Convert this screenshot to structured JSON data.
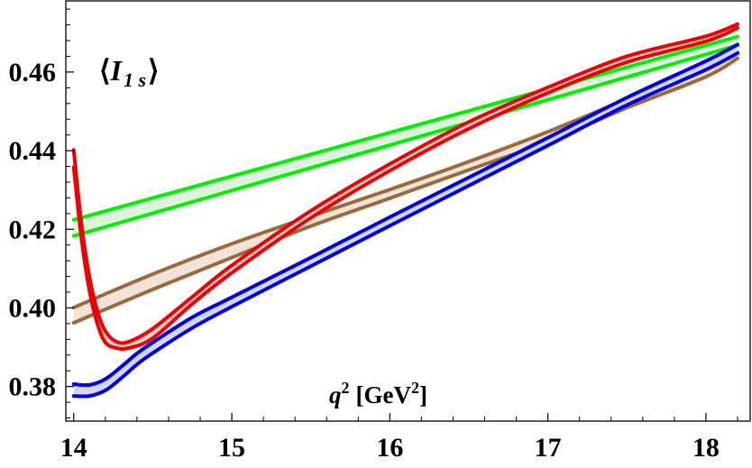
{
  "chart_data": {
    "type": "area",
    "title": "",
    "xlabel": "",
    "ylabel": "",
    "annotations": {
      "observable": {
        "bracket_open": "⟨",
        "symbol": "I",
        "subscript": "1 s",
        "bracket_close": "⟩"
      },
      "x_axis_label": {
        "symbol": "q",
        "sup1": "2",
        "unit_open": "[GeV",
        "sup2": "2",
        "unit_close": "]"
      }
    },
    "xlim": [
      13.95,
      18.28
    ],
    "ylim": [
      0.3712,
      0.4781
    ],
    "x_ticks": [
      14,
      15,
      16,
      17,
      18
    ],
    "x_tick_labels": [
      "14",
      "15",
      "16",
      "17",
      "18"
    ],
    "y_ticks": [
      0.38,
      0.4,
      0.42,
      0.44,
      0.46
    ],
    "y_tick_labels": [
      "0.38",
      "0.40",
      "0.42",
      "0.44",
      "0.46"
    ],
    "grid": false,
    "series": [
      {
        "color": "#00ee00",
        "fill": "#dcf5dc",
        "x": [
          14.0,
          18.2
        ],
        "upper": [
          0.4224,
          0.469
        ],
        "lower": [
          0.4183,
          0.4668
        ]
      },
      {
        "color": "#9b6a3c",
        "fill": "#f0e3d8",
        "x": [
          14.0,
          14.5,
          15.0,
          15.5,
          16.0,
          16.5,
          17.0,
          17.5,
          18.0,
          18.2
        ],
        "upper": [
          0.4001,
          0.4086,
          0.4163,
          0.4233,
          0.4301,
          0.4372,
          0.4448,
          0.4531,
          0.4609,
          0.465
        ],
        "lower": [
          0.3962,
          0.4047,
          0.4128,
          0.4208,
          0.4279,
          0.4351,
          0.4423,
          0.4509,
          0.4588,
          0.4635
        ]
      },
      {
        "color": "#0000dd",
        "fill": "#d4d6f5",
        "x": [
          14.0,
          14.1,
          14.2,
          14.3,
          14.4,
          14.5,
          14.75,
          15.0,
          15.5,
          16.0,
          16.5,
          17.0,
          17.5,
          18.0,
          18.2
        ],
        "upper": [
          0.3806,
          0.3804,
          0.3819,
          0.385,
          0.3884,
          0.3912,
          0.3976,
          0.4027,
          0.4128,
          0.4231,
          0.4332,
          0.4433,
          0.4535,
          0.4628,
          0.467
        ],
        "lower": [
          0.3776,
          0.3776,
          0.379,
          0.3821,
          0.3856,
          0.3885,
          0.3949,
          0.4003,
          0.4106,
          0.4209,
          0.4311,
          0.4413,
          0.4516,
          0.4606,
          0.4648
        ]
      },
      {
        "color": "#ee0000",
        "fill": "#f7d4d4",
        "x": [
          14.0,
          14.05,
          14.1,
          14.15,
          14.2,
          14.27,
          14.35,
          14.5,
          14.75,
          15.0,
          15.5,
          16.0,
          16.5,
          17.0,
          17.5,
          18.0,
          18.2
        ],
        "upper": [
          0.4402,
          0.421,
          0.4078,
          0.3992,
          0.3941,
          0.3914,
          0.3914,
          0.3947,
          0.4028,
          0.4108,
          0.4247,
          0.4366,
          0.4473,
          0.4561,
          0.464,
          0.4691,
          0.4722
        ],
        "lower": [
          0.4358,
          0.4173,
          0.4043,
          0.396,
          0.3912,
          0.3898,
          0.3898,
          0.3923,
          0.401,
          0.4089,
          0.4229,
          0.4349,
          0.4456,
          0.4547,
          0.4625,
          0.4678,
          0.4712
        ]
      }
    ]
  }
}
